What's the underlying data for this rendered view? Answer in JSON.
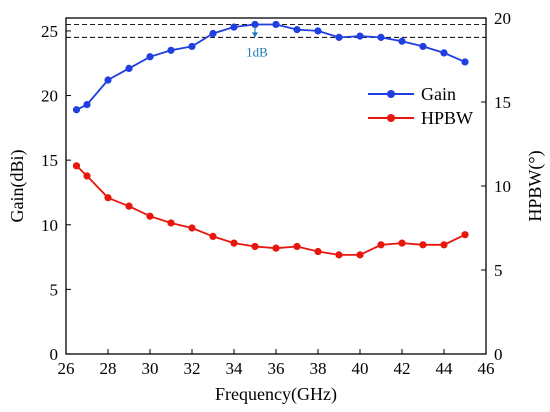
{
  "chart_data": {
    "type": "line",
    "xlabel": "Frequency(GHz)",
    "ylabel_left": "Gain(dBi)",
    "ylabel_right": "HPBW(°)",
    "xlim": [
      26,
      46
    ],
    "ylim_left": [
      0,
      26
    ],
    "ylim_right": [
      0,
      20
    ],
    "xticks": [
      26,
      28,
      30,
      32,
      34,
      36,
      38,
      40,
      42,
      44,
      46
    ],
    "yticks_left": [
      0,
      5,
      10,
      15,
      20,
      25
    ],
    "yticks_right": [
      0,
      5,
      10,
      15,
      20
    ],
    "grid": false,
    "legend_position": "right",
    "series": [
      {
        "name": "Gain",
        "axis": "left",
        "color": "#1f3fe0",
        "x": [
          26.5,
          27,
          28,
          29,
          30,
          31,
          32,
          33,
          34,
          35,
          36,
          37,
          38,
          39,
          40,
          41,
          42,
          43,
          44,
          45
        ],
        "y": [
          18.9,
          19.3,
          21.2,
          22.1,
          23.0,
          23.5,
          23.8,
          24.8,
          25.3,
          25.5,
          25.5,
          25.1,
          25.0,
          24.5,
          24.6,
          24.5,
          24.2,
          23.8,
          23.3,
          22.6
        ]
      },
      {
        "name": "HPBW",
        "axis": "right",
        "color": "#e8160c",
        "x": [
          26.5,
          27,
          28,
          29,
          30,
          31,
          32,
          33,
          34,
          35,
          36,
          37,
          38,
          39,
          40,
          41,
          42,
          43,
          44,
          45
        ],
        "y": [
          11.2,
          10.6,
          9.3,
          8.8,
          8.2,
          7.8,
          7.5,
          7.0,
          6.6,
          6.4,
          6.3,
          6.4,
          6.1,
          5.9,
          5.9,
          6.5,
          6.6,
          6.5,
          6.5,
          7.1
        ]
      }
    ],
    "reference_lines_left": [
      25.5,
      24.5
    ],
    "annotation": {
      "text": "1dB",
      "x": 35,
      "y_top": 25.5,
      "y_bottom": 24.5,
      "color": "#1f78b4"
    }
  }
}
